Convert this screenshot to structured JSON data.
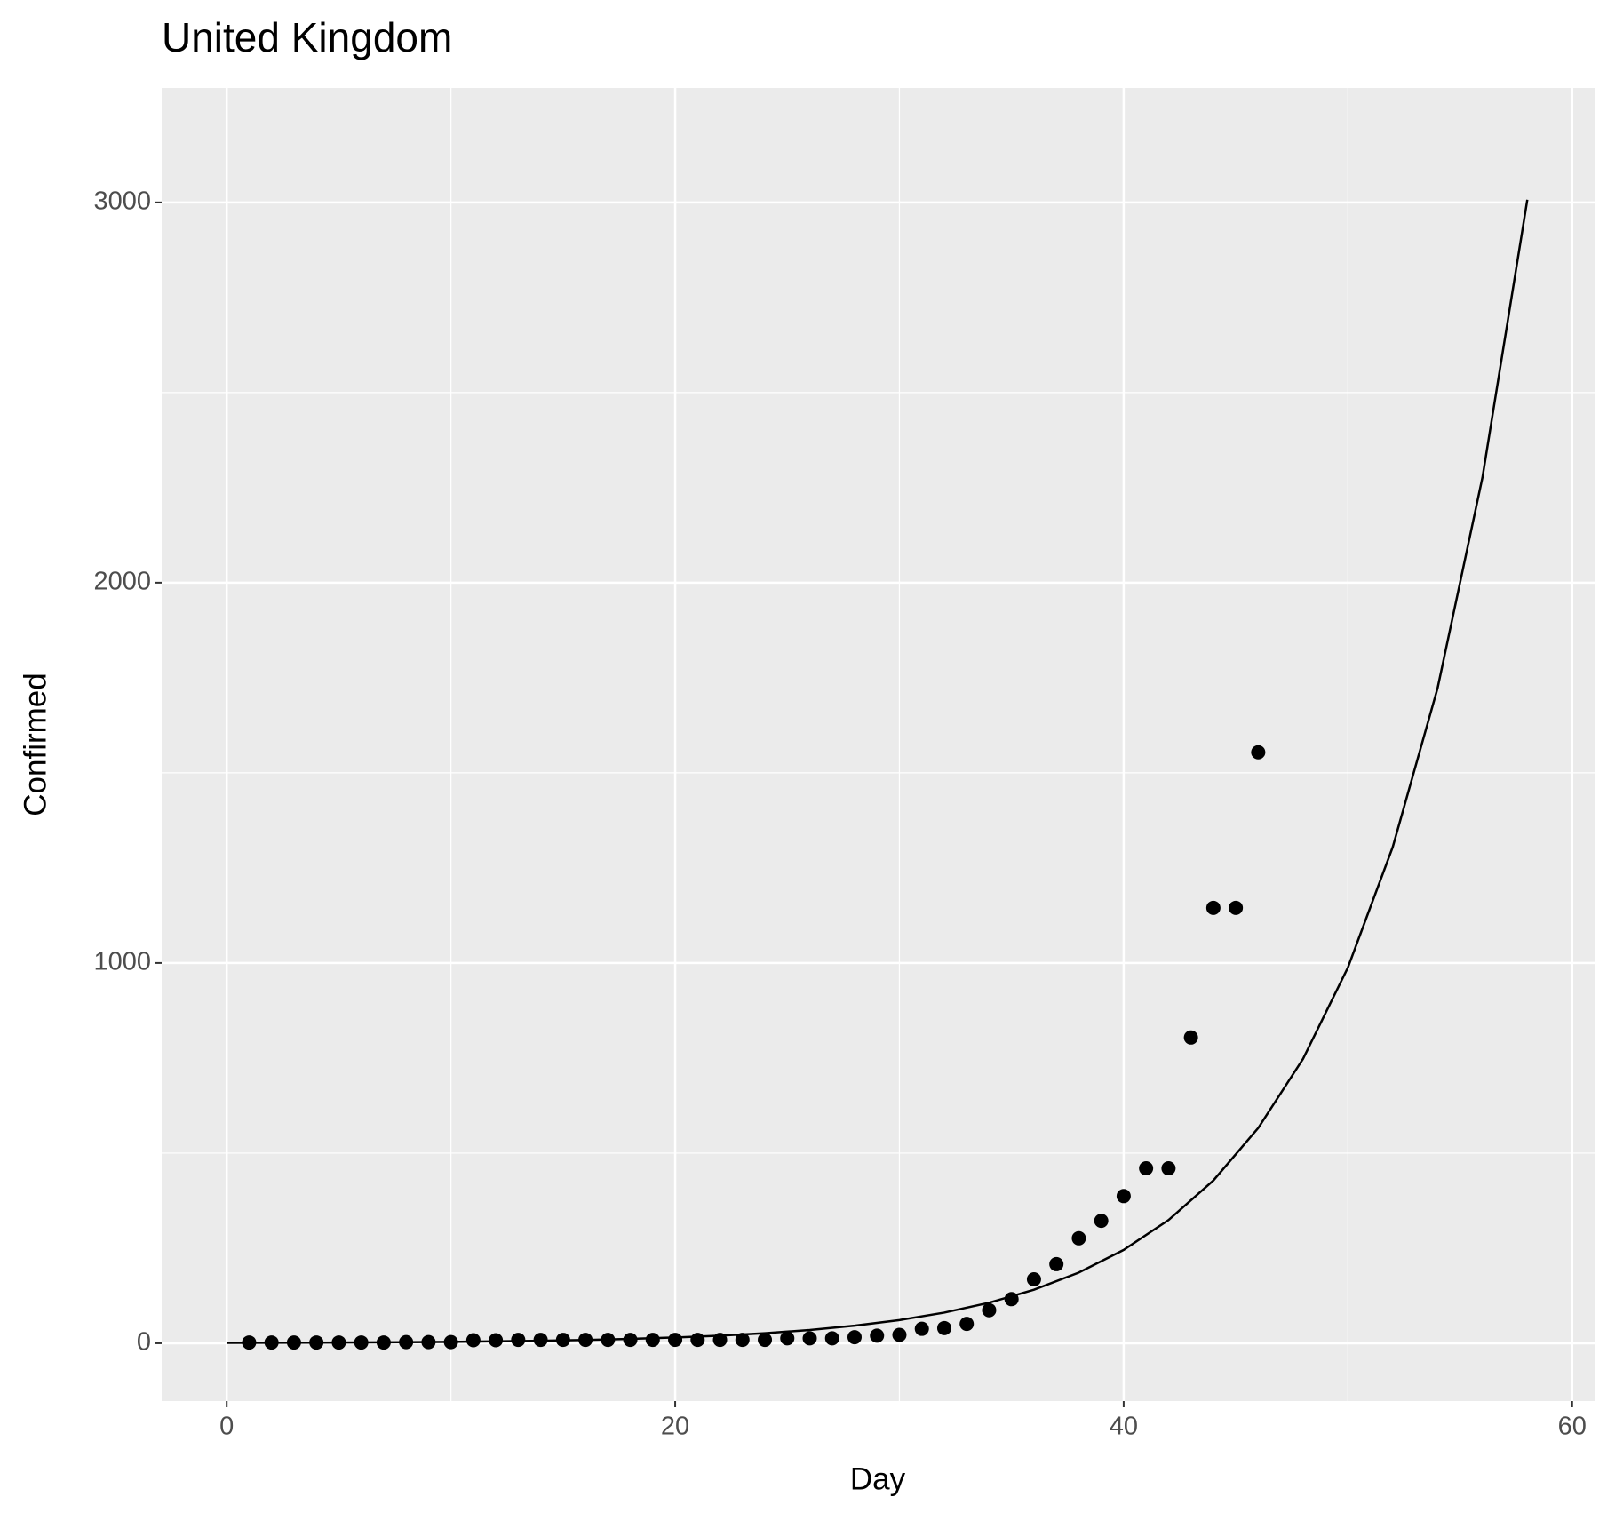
{
  "chart_data": {
    "type": "scatter",
    "title": "United Kingdom",
    "x_label": "Day",
    "y_label": "Confirmed",
    "series": [
      {
        "type": "scatter",
        "color": "#000000",
        "x": [
          1,
          2,
          3,
          4,
          5,
          6,
          7,
          8,
          9,
          10,
          11,
          12,
          13,
          14,
          15,
          16,
          17,
          18,
          19,
          20,
          21,
          22,
          23,
          24,
          25,
          26,
          27,
          28,
          29,
          30,
          31,
          32,
          33,
          34,
          35,
          36,
          37,
          38,
          39,
          40,
          41,
          42,
          43,
          44,
          45,
          46
        ],
        "values": [
          2,
          2,
          2,
          2,
          2,
          2,
          2,
          3,
          3,
          3,
          8,
          8,
          9,
          9,
          9,
          9,
          9,
          9,
          9,
          9,
          9,
          9,
          9,
          9,
          13,
          13,
          13,
          16,
          20,
          22,
          38,
          40,
          51,
          87,
          116,
          168,
          208,
          276,
          322,
          387,
          460,
          460,
          804,
          1145,
          1145,
          1554
        ]
      },
      {
        "type": "line",
        "color": "#000000",
        "x": [
          0,
          2,
          4,
          6,
          8,
          10,
          12,
          14,
          16,
          18,
          20,
          22,
          24,
          26,
          28,
          30,
          32,
          34,
          36,
          38,
          40,
          42,
          44,
          46,
          48,
          50,
          52,
          54,
          56,
          58
        ],
        "values": [
          0.94,
          1.24,
          1.64,
          2.16,
          2.86,
          3.77,
          4.98,
          6.58,
          8.7,
          11.5,
          15.2,
          20.0,
          26.5,
          35,
          46.2,
          61,
          80.6,
          106.5,
          140.7,
          185.8,
          245.5,
          324,
          428,
          566,
          748,
          988,
          1305,
          1723,
          2277,
          3007
        ]
      }
    ],
    "xlim": [
      -2.9,
      61.0
    ],
    "ylim": [
      -152,
      3301
    ],
    "xticks": [
      0,
      20,
      40,
      60
    ],
    "yticks": [
      0,
      1000,
      2000,
      3000
    ],
    "x_minor_breaks": [
      10,
      30,
      50
    ],
    "y_minor_breaks": [
      500,
      1500,
      2500
    ],
    "grid": true
  }
}
